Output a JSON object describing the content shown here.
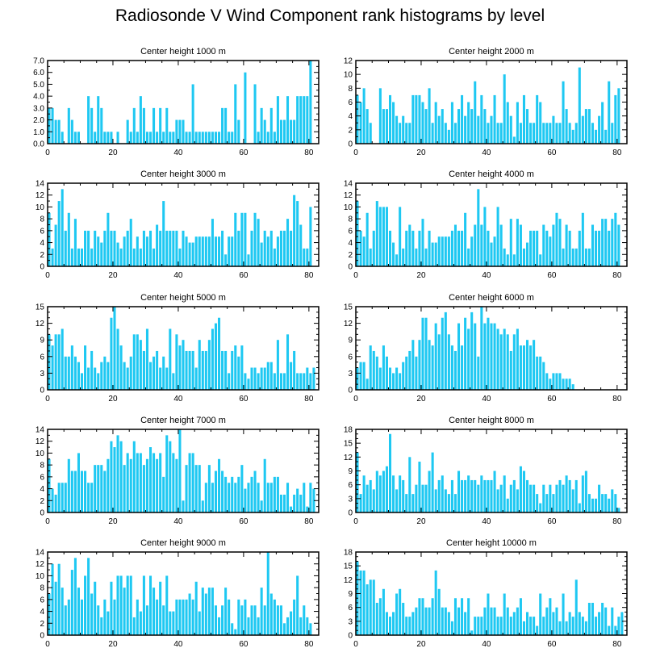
{
  "title": "Radiosonde V Wind Component rank histograms by level",
  "chart_data": [
    {
      "type": "bar",
      "title": "Center height 1000 m",
      "xlim": [
        0,
        83
      ],
      "ylim": [
        0,
        7
      ],
      "xticks": [
        0,
        20,
        40,
        60,
        80
      ],
      "yticks": [
        "0.0",
        "1.0",
        "2.0",
        "3.0",
        "4.0",
        "5.0",
        "6.0",
        "7.0"
      ],
      "ytick_values": [
        0,
        1,
        2,
        3,
        4,
        5,
        6,
        7
      ],
      "values": [
        3,
        3,
        2,
        2,
        1,
        0,
        3,
        2,
        1,
        1,
        0,
        0,
        4,
        3,
        1,
        4,
        3,
        1,
        1,
        1,
        0,
        1,
        0,
        0,
        2,
        1,
        3,
        1,
        4,
        3,
        1,
        1,
        3,
        1,
        3,
        1,
        3,
        1,
        1,
        2,
        2,
        2,
        1,
        1,
        5,
        1,
        1,
        1,
        1,
        1,
        1,
        1,
        1,
        3,
        3,
        1,
        1,
        5,
        2,
        0,
        6,
        0,
        0,
        5,
        1,
        3,
        2,
        1,
        3,
        1,
        4,
        2,
        2,
        4,
        2,
        2,
        4,
        4,
        4,
        4,
        7,
        0
      ]
    },
    {
      "type": "bar",
      "title": "Center height 2000 m",
      "xlim": [
        0,
        83
      ],
      "ylim": [
        0,
        12
      ],
      "xticks": [
        0,
        20,
        40,
        60,
        80
      ],
      "yticks": [
        "0",
        "2",
        "4",
        "6",
        "8",
        "10",
        "12"
      ],
      "ytick_values": [
        0,
        2,
        4,
        6,
        8,
        10,
        12
      ],
      "values": [
        7,
        6,
        8,
        5,
        3,
        0,
        0,
        8,
        5,
        5,
        7,
        6,
        4,
        3,
        4,
        3,
        3,
        7,
        7,
        7,
        6,
        5,
        8,
        3,
        6,
        4,
        5,
        3,
        2,
        6,
        3,
        5,
        7,
        4,
        6,
        5,
        9,
        4,
        7,
        5,
        3,
        4,
        7,
        3,
        3,
        10,
        6,
        4,
        1,
        6,
        3,
        7,
        5,
        3,
        3,
        7,
        6,
        3,
        3,
        3,
        4,
        3,
        3,
        9,
        5,
        3,
        2,
        3,
        11,
        4,
        5,
        5,
        3,
        2,
        4,
        6,
        2,
        9,
        3,
        7,
        8,
        0
      ]
    },
    {
      "type": "bar",
      "title": "Center height 3000 m",
      "xlim": [
        0,
        83
      ],
      "ylim": [
        0,
        14
      ],
      "xticks": [
        0,
        20,
        40,
        60,
        80
      ],
      "yticks": [
        "0",
        "2",
        "4",
        "6",
        "8",
        "10",
        "12",
        "14"
      ],
      "ytick_values": [
        0,
        2,
        4,
        6,
        8,
        10,
        12,
        14
      ],
      "values": [
        9,
        3,
        7,
        11,
        13,
        6,
        9,
        3,
        8,
        3,
        3,
        6,
        6,
        3,
        6,
        5,
        4,
        6,
        9,
        6,
        6,
        4,
        3,
        5,
        6,
        8,
        3,
        5,
        3,
        6,
        5,
        6,
        3,
        7,
        6,
        11,
        6,
        6,
        6,
        6,
        3,
        6,
        5,
        4,
        4,
        5,
        5,
        5,
        5,
        5,
        8,
        5,
        5,
        6,
        2,
        5,
        5,
        9,
        6,
        9,
        9,
        2,
        6,
        9,
        8,
        4,
        6,
        5,
        6,
        3,
        5,
        6,
        6,
        8,
        6,
        12,
        11,
        7,
        3,
        3,
        10,
        0
      ]
    },
    {
      "type": "bar",
      "title": "Center height 4000 m",
      "xlim": [
        0,
        83
      ],
      "ylim": [
        0,
        14
      ],
      "xticks": [
        0,
        20,
        40,
        60,
        80
      ],
      "yticks": [
        "0",
        "2",
        "4",
        "6",
        "8",
        "10",
        "12",
        "14"
      ],
      "ytick_values": [
        0,
        2,
        4,
        6,
        8,
        10,
        12,
        14
      ],
      "values": [
        11,
        6,
        5,
        9,
        3,
        6,
        11,
        10,
        10,
        10,
        6,
        4,
        2,
        10,
        3,
        6,
        7,
        6,
        3,
        6,
        8,
        3,
        6,
        4,
        4,
        5,
        5,
        5,
        5,
        6,
        7,
        6,
        6,
        9,
        3,
        5,
        7,
        13,
        7,
        10,
        6,
        4,
        5,
        10,
        7,
        3,
        2,
        8,
        2,
        8,
        7,
        3,
        4,
        6,
        6,
        6,
        2,
        7,
        6,
        5,
        7,
        9,
        8,
        3,
        7,
        6,
        3,
        3,
        6,
        9,
        3,
        3,
        7,
        6,
        6,
        8,
        8,
        6,
        8,
        9,
        7,
        0
      ]
    },
    {
      "type": "bar",
      "title": "Center height 5000 m",
      "xlim": [
        0,
        83
      ],
      "ylim": [
        0,
        15
      ],
      "xticks": [
        0,
        20,
        40,
        60,
        80
      ],
      "yticks": [
        "0",
        "3",
        "6",
        "9",
        "12",
        "15"
      ],
      "ytick_values": [
        0,
        3,
        6,
        9,
        12,
        15
      ],
      "values": [
        10,
        8,
        10,
        10,
        11,
        6,
        6,
        8,
        6,
        5,
        3,
        8,
        4,
        7,
        4,
        3,
        5,
        6,
        5,
        13,
        15,
        11,
        8,
        5,
        4,
        6,
        10,
        10,
        9,
        7,
        11,
        5,
        6,
        7,
        4,
        6,
        4,
        11,
        3,
        10,
        8,
        9,
        7,
        7,
        7,
        4,
        9,
        7,
        7,
        9,
        11,
        12,
        13,
        7,
        7,
        3,
        7,
        8,
        6,
        8,
        3,
        2,
        4,
        4,
        3,
        4,
        4,
        5,
        5,
        3,
        9,
        3,
        3,
        10,
        5,
        7,
        3,
        3,
        3,
        4,
        3,
        4
      ]
    },
    {
      "type": "bar",
      "title": "Center height 6000 m",
      "xlim": [
        0,
        83
      ],
      "ylim": [
        0,
        15
      ],
      "xticks": [
        0,
        20,
        40,
        60,
        80
      ],
      "yticks": [
        "0",
        "3",
        "6",
        "9",
        "12",
        "15"
      ],
      "ytick_values": [
        0,
        3,
        6,
        9,
        12,
        15
      ],
      "values": [
        4,
        5,
        5,
        2,
        8,
        7,
        6,
        4,
        8,
        6,
        4,
        3,
        4,
        3,
        5,
        6,
        7,
        9,
        6,
        9,
        13,
        13,
        9,
        8,
        12,
        10,
        13,
        14,
        10,
        8,
        7,
        12,
        8,
        13,
        11,
        14,
        12,
        6,
        15,
        12,
        13,
        12,
        12,
        11,
        10,
        11,
        10,
        7,
        10,
        11,
        8,
        8,
        9,
        8,
        9,
        6,
        6,
        5,
        3,
        2,
        3,
        3,
        3,
        2,
        2,
        2,
        1
      ]
    },
    {
      "type": "bar",
      "title": "Center height 7000 m",
      "xlim": [
        0,
        83
      ],
      "ylim": [
        0,
        14
      ],
      "xticks": [
        0,
        20,
        40,
        60,
        80
      ],
      "yticks": [
        "0",
        "2",
        "4",
        "6",
        "8",
        "10",
        "12",
        "14"
      ],
      "ytick_values": [
        0,
        2,
        4,
        6,
        8,
        10,
        12,
        14
      ],
      "values": [
        9,
        4,
        3,
        5,
        5,
        5,
        9,
        7,
        7,
        10,
        7,
        7,
        5,
        5,
        8,
        8,
        8,
        7,
        9,
        12,
        11,
        13,
        12,
        8,
        10,
        9,
        12,
        10,
        10,
        8,
        9,
        11,
        10,
        9,
        10,
        6,
        13,
        12,
        10,
        9,
        14,
        2,
        8,
        10,
        10,
        8,
        8,
        2,
        5,
        8,
        5,
        7,
        9,
        7,
        6,
        5,
        6,
        5,
        6,
        8,
        4,
        5,
        6,
        7,
        5,
        2,
        9,
        5,
        5,
        6,
        6,
        3,
        3,
        5,
        1,
        3,
        4,
        3,
        5,
        1,
        5,
        4
      ]
    },
    {
      "type": "bar",
      "title": "Center height 8000 m",
      "xlim": [
        0,
        83
      ],
      "ylim": [
        0,
        18
      ],
      "xticks": [
        0,
        20,
        40,
        60,
        80
      ],
      "yticks": [
        "0",
        "3",
        "6",
        "9",
        "12",
        "15",
        "18"
      ],
      "ytick_values": [
        0,
        3,
        6,
        9,
        12,
        15,
        18
      ],
      "values": [
        13,
        4,
        8,
        6,
        7,
        5,
        9,
        8,
        9,
        10,
        17,
        8,
        5,
        8,
        7,
        4,
        12,
        4,
        6,
        11,
        6,
        6,
        9,
        13,
        5,
        7,
        8,
        5,
        4,
        7,
        4,
        9,
        7,
        7,
        8,
        7,
        7,
        6,
        8,
        7,
        7,
        7,
        9,
        5,
        6,
        8,
        3,
        6,
        7,
        5,
        10,
        9,
        7,
        6,
        6,
        4,
        2,
        6,
        4,
        6,
        4,
        6,
        7,
        6,
        8,
        7,
        5,
        7,
        2,
        8,
        9,
        4,
        3,
        3,
        6,
        4,
        4,
        3,
        5,
        4,
        1,
        0
      ]
    },
    {
      "type": "bar",
      "title": "Center height 9000 m",
      "xlim": [
        0,
        83
      ],
      "ylim": [
        0,
        14
      ],
      "xticks": [
        0,
        20,
        40,
        60,
        80
      ],
      "yticks": [
        "0",
        "2",
        "4",
        "6",
        "8",
        "10",
        "12",
        "14"
      ],
      "ytick_values": [
        0,
        2,
        4,
        6,
        8,
        10,
        12,
        14
      ],
      "values": [
        7,
        12,
        9,
        12,
        8,
        5,
        6,
        11,
        13,
        8,
        6,
        10,
        13,
        7,
        9,
        5,
        3,
        6,
        4,
        9,
        6,
        10,
        10,
        8,
        10,
        10,
        3,
        6,
        4,
        10,
        5,
        10,
        8,
        6,
        9,
        5,
        10,
        4,
        4,
        6,
        6,
        6,
        6,
        7,
        6,
        9,
        4,
        8,
        7,
        8,
        8,
        5,
        3,
        5,
        8,
        6,
        2,
        1,
        6,
        5,
        6,
        3,
        5,
        5,
        3,
        8,
        5,
        14,
        7,
        6,
        5,
        5,
        2,
        3,
        4,
        6,
        10,
        3,
        5,
        3,
        2,
        0
      ]
    },
    {
      "type": "bar",
      "title": "Center height 10000 m",
      "xlim": [
        0,
        83
      ],
      "ylim": [
        0,
        18
      ],
      "xticks": [
        0,
        20,
        40,
        60,
        80
      ],
      "yticks": [
        "0",
        "3",
        "6",
        "9",
        "12",
        "15",
        "18"
      ],
      "ytick_values": [
        0,
        3,
        6,
        9,
        12,
        15,
        18
      ],
      "values": [
        16,
        14,
        14,
        11,
        12,
        12,
        7,
        8,
        10,
        5,
        4,
        5,
        9,
        10,
        7,
        4,
        4,
        5,
        6,
        8,
        8,
        6,
        6,
        8,
        14,
        10,
        6,
        6,
        5,
        3,
        8,
        6,
        8,
        5,
        8,
        1,
        4,
        4,
        4,
        6,
        9,
        6,
        6,
        4,
        4,
        9,
        6,
        4,
        5,
        6,
        8,
        3,
        5,
        4,
        4,
        2,
        9,
        4,
        6,
        8,
        5,
        6,
        3,
        9,
        3,
        5,
        4,
        12,
        5,
        4,
        3,
        7,
        7,
        4,
        5,
        7,
        6,
        2,
        6,
        2,
        4,
        5
      ]
    }
  ]
}
